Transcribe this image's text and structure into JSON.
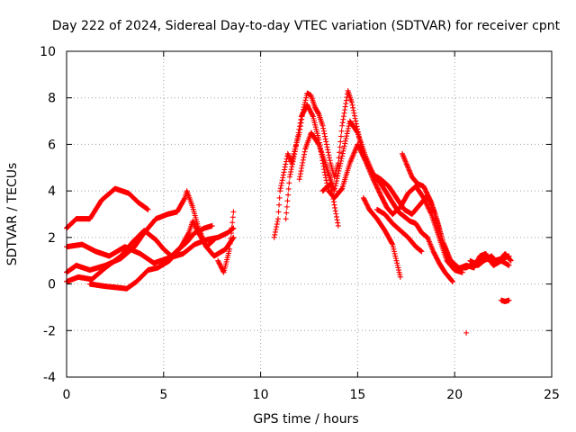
{
  "chart_data": {
    "type": "scatter",
    "title": "Day 222 of 2024, Sidereal Day-to-day VTEC variation (SDTVAR) for receiver cpnt",
    "xlabel": "GPS time / hours",
    "ylabel": "SDTVAR / TECUs",
    "xlim": [
      0,
      25
    ],
    "ylim": [
      -4,
      10
    ],
    "xticks": [
      "0",
      "5",
      "10",
      "15",
      "20",
      "25"
    ],
    "yticks": [
      "-4",
      "-2",
      "0",
      "2",
      "4",
      "6",
      "8",
      "10"
    ],
    "grid": true,
    "marker": "plus",
    "color": "#ff0000",
    "series": [
      {
        "name": "s1",
        "points": [
          [
            0.0,
            2.4
          ],
          [
            0.5,
            2.8
          ],
          [
            1.2,
            2.8
          ],
          [
            1.8,
            3.6
          ],
          [
            2.5,
            4.1
          ],
          [
            3.2,
            3.9
          ],
          [
            3.7,
            3.5
          ],
          [
            4.2,
            3.2
          ]
        ]
      },
      {
        "name": "s2",
        "points": [
          [
            0.0,
            1.6
          ],
          [
            0.8,
            1.7
          ],
          [
            1.5,
            1.4
          ],
          [
            2.2,
            1.2
          ],
          [
            3.0,
            1.6
          ],
          [
            3.8,
            1.3
          ],
          [
            4.5,
            0.9
          ],
          [
            5.2,
            1.1
          ],
          [
            6.0,
            1.3
          ],
          [
            6.6,
            1.7
          ],
          [
            7.2,
            1.9
          ],
          [
            7.8,
            2.0
          ],
          [
            8.3,
            2.2
          ],
          [
            8.6,
            2.4
          ]
        ]
      },
      {
        "name": "s3",
        "points": [
          [
            0.0,
            0.5
          ],
          [
            0.5,
            0.8
          ],
          [
            1.2,
            0.6
          ],
          [
            2.0,
            0.8
          ],
          [
            2.8,
            1.1
          ],
          [
            3.5,
            1.6
          ],
          [
            4.0,
            2.2
          ],
          [
            4.6,
            2.8
          ],
          [
            5.2,
            3.0
          ],
          [
            5.7,
            3.1
          ],
          [
            6.1,
            3.7
          ],
          [
            6.2,
            4.0
          ],
          [
            6.5,
            3.3
          ],
          [
            6.8,
            2.4
          ],
          [
            7.2,
            1.6
          ],
          [
            7.6,
            1.2
          ],
          [
            8.2,
            1.5
          ],
          [
            8.6,
            2.0
          ]
        ]
      },
      {
        "name": "s4",
        "points": [
          [
            0.0,
            0.1
          ],
          [
            0.6,
            0.3
          ],
          [
            1.3,
            0.2
          ],
          [
            2.0,
            0.7
          ],
          [
            2.8,
            1.2
          ],
          [
            3.4,
            1.8
          ],
          [
            4.0,
            2.3
          ],
          [
            4.6,
            1.9
          ],
          [
            5.0,
            1.5
          ],
          [
            5.4,
            1.2
          ],
          [
            5.9,
            1.6
          ],
          [
            6.3,
            2.2
          ],
          [
            6.5,
            2.7
          ],
          [
            6.8,
            2.2
          ],
          [
            7.2,
            1.6
          ],
          [
            7.6,
            1.9
          ]
        ]
      },
      {
        "name": "s5",
        "points": [
          [
            1.2,
            0.0
          ],
          [
            2.0,
            -0.1
          ],
          [
            2.6,
            -0.15
          ],
          [
            3.1,
            -0.2
          ],
          [
            3.6,
            0.1
          ],
          [
            4.2,
            0.6
          ],
          [
            4.7,
            0.7
          ],
          [
            5.3,
            1.0
          ],
          [
            5.8,
            1.5
          ],
          [
            6.2,
            1.8
          ],
          [
            6.6,
            2.2
          ],
          [
            7.1,
            2.4
          ],
          [
            7.5,
            2.5
          ]
        ]
      },
      {
        "name": "s6",
        "points": [
          [
            7.8,
            1.0
          ],
          [
            8.1,
            0.5
          ],
          [
            8.4,
            1.5
          ],
          [
            8.6,
            3.1
          ]
        ]
      },
      {
        "name": "s7",
        "points": [
          [
            10.7,
            2.0
          ],
          [
            10.9,
            2.8
          ],
          [
            11.0,
            4.0
          ],
          [
            11.2,
            4.8
          ],
          [
            11.4,
            5.6
          ],
          [
            11.6,
            5.2
          ],
          [
            11.8,
            5.9
          ],
          [
            12.0,
            6.5
          ],
          [
            12.2,
            7.5
          ],
          [
            12.4,
            8.2
          ],
          [
            12.6,
            8.1
          ],
          [
            12.8,
            7.6
          ],
          [
            13.0,
            7.3
          ],
          [
            13.2,
            6.8
          ],
          [
            13.4,
            6.0
          ],
          [
            13.6,
            5.2
          ],
          [
            13.8,
            4.6
          ],
          [
            14.0,
            5.2
          ],
          [
            14.2,
            6.8
          ],
          [
            14.5,
            8.3
          ],
          [
            14.7,
            7.8
          ],
          [
            14.9,
            7.0
          ],
          [
            15.1,
            6.2
          ],
          [
            15.3,
            5.5
          ],
          [
            15.6,
            5.0
          ],
          [
            15.9,
            4.6
          ],
          [
            16.2,
            4.3
          ],
          [
            16.5,
            3.9
          ],
          [
            16.8,
            3.5
          ],
          [
            17.1,
            3.1
          ],
          [
            17.4,
            2.9
          ],
          [
            17.7,
            2.7
          ],
          [
            18.0,
            2.6
          ],
          [
            18.3,
            2.2
          ],
          [
            18.6,
            2.0
          ],
          [
            18.9,
            1.4
          ],
          [
            19.2,
            0.9
          ],
          [
            19.5,
            0.5
          ],
          [
            19.9,
            0.1
          ]
        ]
      },
      {
        "name": "s8",
        "points": [
          [
            11.3,
            2.8
          ],
          [
            11.5,
            4.6
          ],
          [
            11.8,
            5.8
          ],
          [
            12.1,
            7.2
          ],
          [
            12.4,
            7.7
          ],
          [
            12.7,
            7.2
          ],
          [
            13.0,
            6.2
          ],
          [
            13.3,
            4.8
          ],
          [
            13.5,
            4.0
          ],
          [
            13.8,
            3.7
          ],
          [
            14.2,
            4.1
          ],
          [
            14.6,
            5.2
          ],
          [
            15.0,
            6.0
          ],
          [
            15.4,
            5.3
          ],
          [
            15.8,
            4.5
          ],
          [
            16.2,
            3.8
          ],
          [
            16.5,
            3.3
          ],
          [
            16.8,
            3.0
          ],
          [
            17.2,
            3.3
          ],
          [
            17.6,
            3.9
          ],
          [
            18.0,
            4.2
          ],
          [
            18.4,
            3.7
          ],
          [
            18.8,
            3.0
          ],
          [
            19.2,
            2.0
          ],
          [
            19.6,
            1.0
          ],
          [
            20.0,
            0.6
          ],
          [
            20.4,
            0.5
          ]
        ]
      },
      {
        "name": "s9",
        "points": [
          [
            12.0,
            4.5
          ],
          [
            12.3,
            5.8
          ],
          [
            12.6,
            6.5
          ],
          [
            13.0,
            6.0
          ],
          [
            13.4,
            5.0
          ],
          [
            13.8,
            4.0
          ],
          [
            14.2,
            5.5
          ],
          [
            14.6,
            7.0
          ],
          [
            15.0,
            6.5
          ],
          [
            15.4,
            5.5
          ],
          [
            15.8,
            4.7
          ],
          [
            16.2,
            4.5
          ],
          [
            16.6,
            4.2
          ],
          [
            17.0,
            3.7
          ],
          [
            17.4,
            3.2
          ],
          [
            17.8,
            3.0
          ],
          [
            18.2,
            3.4
          ],
          [
            18.6,
            3.8
          ],
          [
            19.0,
            3.0
          ],
          [
            19.4,
            1.8
          ],
          [
            19.8,
            1.0
          ],
          [
            20.2,
            0.7
          ],
          [
            20.6,
            0.7
          ],
          [
            21.0,
            0.9
          ],
          [
            21.5,
            1.1
          ],
          [
            22.0,
            1.0
          ],
          [
            22.5,
            1.1
          ],
          [
            22.8,
            1.2
          ]
        ]
      },
      {
        "name": "s10",
        "points": [
          [
            13.2,
            4.0
          ],
          [
            13.6,
            4.3
          ],
          [
            14.0,
            2.5
          ]
        ]
      },
      {
        "name": "s11",
        "points": [
          [
            15.3,
            3.7
          ],
          [
            15.6,
            3.2
          ],
          [
            16.0,
            2.8
          ],
          [
            16.4,
            2.3
          ],
          [
            16.8,
            1.7
          ],
          [
            17.0,
            1.0
          ],
          [
            17.2,
            0.3
          ]
        ]
      },
      {
        "name": "s12",
        "points": [
          [
            16.0,
            3.2
          ],
          [
            16.4,
            3.0
          ],
          [
            16.8,
            2.6
          ],
          [
            17.2,
            2.3
          ],
          [
            17.6,
            2.0
          ],
          [
            18.0,
            1.6
          ],
          [
            18.3,
            1.4
          ]
        ]
      },
      {
        "name": "s13",
        "points": [
          [
            17.3,
            5.6
          ],
          [
            17.5,
            5.2
          ],
          [
            17.8,
            4.6
          ],
          [
            18.1,
            4.3
          ],
          [
            18.4,
            4.2
          ],
          [
            18.8,
            3.5
          ],
          [
            19.1,
            2.7
          ],
          [
            19.4,
            1.8
          ],
          [
            19.7,
            1.1
          ],
          [
            20.0,
            0.7
          ],
          [
            20.3,
            0.6
          ]
        ]
      },
      {
        "name": "s14",
        "points": [
          [
            20.3,
            0.7
          ],
          [
            20.6,
            0.8
          ],
          [
            21.0,
            0.7
          ],
          [
            21.3,
            1.2
          ],
          [
            21.6,
            1.3
          ],
          [
            22.0,
            0.8
          ],
          [
            22.4,
            1.0
          ],
          [
            22.8,
            0.8
          ]
        ]
      },
      {
        "name": "s15",
        "points": [
          [
            20.8,
            1.0
          ],
          [
            21.2,
            0.8
          ],
          [
            21.5,
            1.0
          ],
          [
            21.9,
            1.2
          ],
          [
            22.2,
            0.9
          ],
          [
            22.6,
            1.3
          ],
          [
            22.9,
            1.0
          ]
        ]
      },
      {
        "name": "s16",
        "points": [
          [
            22.4,
            -0.7
          ],
          [
            22.6,
            -0.75
          ],
          [
            22.8,
            -0.7
          ]
        ]
      },
      {
        "name": "s17",
        "points": [
          [
            20.6,
            -2.1
          ]
        ]
      }
    ]
  }
}
